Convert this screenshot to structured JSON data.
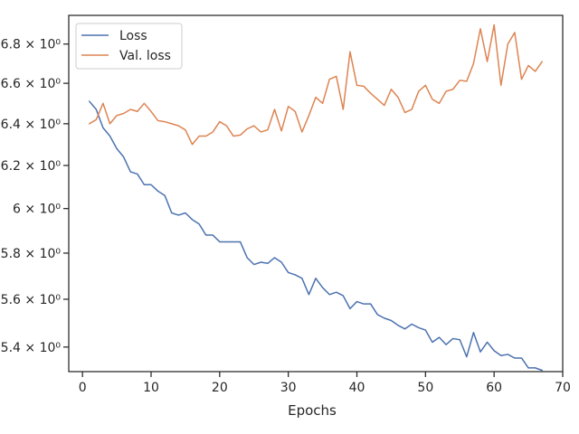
{
  "chart_data": {
    "type": "line",
    "xlabel": "Epochs",
    "ylabel": "",
    "xlim": [
      -2,
      70
    ],
    "ylim": [
      5.3,
      6.95
    ],
    "yscale": "log",
    "grid": false,
    "legend_position": "top-left",
    "x_ticks": [
      0,
      10,
      20,
      30,
      40,
      50,
      60,
      70
    ],
    "x_tick_labels": [
      "0",
      "10",
      "20",
      "30",
      "40",
      "50",
      "60",
      "70"
    ],
    "y_ticks": [
      5.4,
      5.6,
      5.8,
      6.0,
      6.2,
      6.4,
      6.6,
      6.8
    ],
    "y_tick_labels": [
      "5.4 × 10⁰",
      "5.6 × 10⁰",
      "5.8 × 10⁰",
      "6 × 10⁰",
      "6.2 × 10⁰",
      "6.4 × 10⁰",
      "6.6 × 10⁰",
      "6.8 × 10⁰"
    ],
    "x": [
      1,
      2,
      3,
      4,
      5,
      6,
      7,
      8,
      9,
      10,
      11,
      12,
      13,
      14,
      15,
      16,
      17,
      18,
      19,
      20,
      21,
      22,
      23,
      24,
      25,
      26,
      27,
      28,
      29,
      30,
      31,
      32,
      33,
      34,
      35,
      36,
      37,
      38,
      39,
      40,
      41,
      42,
      43,
      44,
      45,
      46,
      47,
      48,
      49,
      50,
      51,
      52,
      53,
      54,
      55,
      56,
      57,
      58,
      59,
      60,
      61,
      62,
      63,
      64,
      65,
      66,
      67
    ],
    "series": [
      {
        "name": "Loss",
        "color": "#4c72b0",
        "values": [
          6.51,
          6.47,
          6.38,
          6.34,
          6.28,
          6.24,
          6.17,
          6.16,
          6.11,
          6.11,
          6.08,
          6.06,
          5.98,
          5.97,
          5.98,
          5.95,
          5.93,
          5.88,
          5.88,
          5.85,
          5.85,
          5.85,
          5.85,
          5.78,
          5.75,
          5.76,
          5.755,
          5.78,
          5.76,
          5.715,
          5.705,
          5.69,
          5.62,
          5.69,
          5.65,
          5.62,
          5.63,
          5.615,
          5.56,
          5.59,
          5.58,
          5.58,
          5.535,
          5.52,
          5.51,
          5.49,
          5.475,
          5.495,
          5.48,
          5.47,
          5.42,
          5.44,
          5.41,
          5.435,
          5.43,
          5.36,
          5.46,
          5.38,
          5.42,
          5.385,
          5.365,
          5.37,
          5.355,
          5.355,
          5.315,
          5.315,
          5.305
        ]
      },
      {
        "name": "Val. loss",
        "color": "#dd8452",
        "values": [
          6.4,
          6.42,
          6.5,
          6.4,
          6.44,
          6.45,
          6.47,
          6.46,
          6.5,
          6.46,
          6.415,
          6.41,
          6.4,
          6.39,
          6.37,
          6.3,
          6.34,
          6.34,
          6.36,
          6.41,
          6.39,
          6.34,
          6.345,
          6.375,
          6.39,
          6.36,
          6.37,
          6.47,
          6.365,
          6.485,
          6.46,
          6.36,
          6.44,
          6.53,
          6.5,
          6.62,
          6.635,
          6.47,
          6.76,
          6.59,
          6.585,
          6.55,
          6.52,
          6.49,
          6.57,
          6.53,
          6.455,
          6.47,
          6.56,
          6.59,
          6.52,
          6.5,
          6.56,
          6.57,
          6.615,
          6.61,
          6.7,
          6.88,
          6.71,
          6.9,
          6.59,
          6.8,
          6.86,
          6.62,
          6.69,
          6.66,
          6.71
        ]
      }
    ]
  }
}
